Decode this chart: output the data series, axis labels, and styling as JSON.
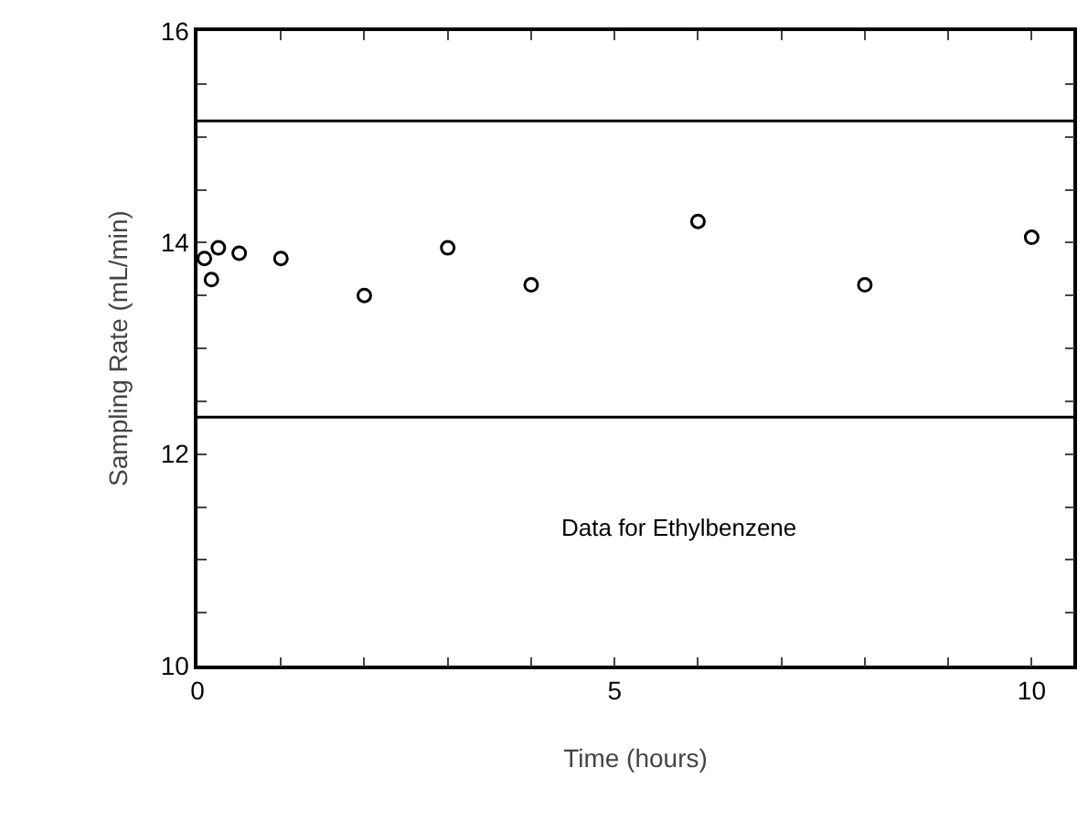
{
  "chart_data": {
    "type": "scatter",
    "xlabel": "Time (hours)",
    "ylabel": "Sampling Rate (mL/min)",
    "annotations": [
      "Data for Ethylbenzene"
    ],
    "x": [
      0.083,
      0.167,
      0.25,
      0.5,
      1,
      2,
      3,
      4,
      6,
      8,
      10
    ],
    "series": [
      {
        "color": "#000000",
        "values": [
          13.85,
          13.65,
          13.95,
          13.9,
          13.85,
          13.5,
          13.95,
          13.6,
          14.2,
          13.6,
          14.05
        ]
      }
    ],
    "xlim": [
      0,
      10.5
    ],
    "ylim": [
      10,
      16
    ],
    "xticks": [
      0,
      {
        "value": 1,
        "label": null
      },
      {
        "value": 2,
        "label": null
      },
      {
        "value": 3,
        "label": null
      },
      {
        "value": 4,
        "label": null
      },
      5,
      {
        "value": 6,
        "label": null
      },
      {
        "value": 7,
        "label": null
      },
      {
        "value": 8,
        "label": null
      },
      {
        "value": 9,
        "label": null
      },
      10
    ],
    "yticks": [
      10,
      {
        "value": 10.5,
        "label": null
      },
      {
        "value": 11,
        "label": null
      },
      {
        "value": 11.5,
        "label": null
      },
      12,
      {
        "value": 12.5,
        "label": null
      },
      {
        "value": 13,
        "label": null
      },
      {
        "value": 13.5,
        "label": null
      },
      14,
      {
        "value": 14.5,
        "label": null
      },
      {
        "value": 15,
        "label": null
      },
      {
        "value": 15.5,
        "label": null
      },
      16
    ],
    "ref_lines": [
      {
        "axis": "y",
        "value": 15.15,
        "color": "#000000"
      },
      {
        "axis": "y",
        "value": 12.35,
        "color": "#000000"
      }
    ],
    "marker": "circle"
  }
}
